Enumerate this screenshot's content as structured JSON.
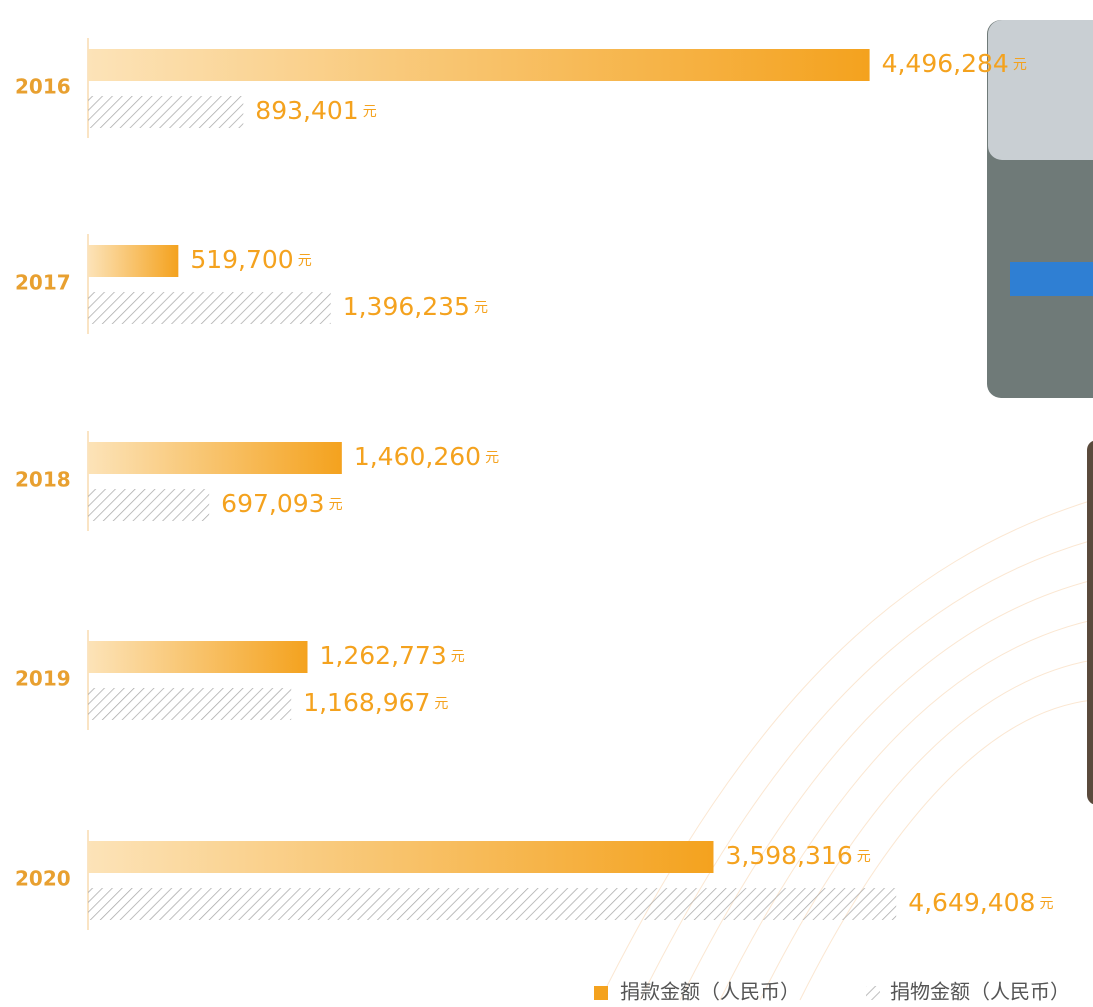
{
  "chart_data": {
    "type": "bar",
    "orientation": "horizontal",
    "categories": [
      "2016",
      "2017",
      "2018",
      "2019",
      "2020"
    ],
    "unit": "元",
    "series": [
      {
        "name": "捐款金额（人民币）",
        "color": "#f4a21e",
        "values": [
          4496284,
          519700,
          1460260,
          1262773,
          3598316
        ],
        "value_labels": [
          "4,496,284",
          "519,700",
          "1,460,260",
          "1,262,773",
          "3,598,316"
        ]
      },
      {
        "name": "捐物金额（人民币）",
        "color": "#b5b5b5",
        "values": [
          893401,
          1396235,
          697093,
          1168967,
          4649408
        ],
        "value_labels": [
          "893,401",
          "1,396,235",
          "697,093",
          "1,168,967",
          "4,649,408"
        ]
      }
    ],
    "xlim": [
      0,
      4700000
    ],
    "legend": "bottom-right"
  }
}
